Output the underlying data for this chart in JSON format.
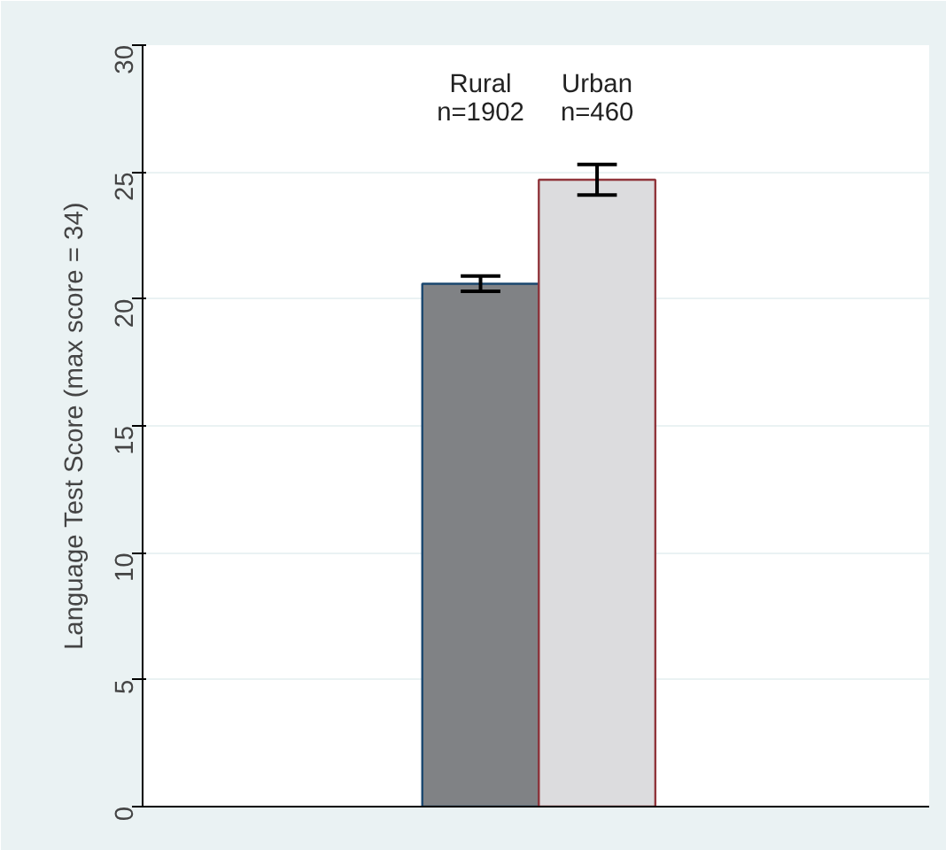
{
  "chart_data": {
    "type": "bar",
    "ylabel": "Language Test Score (max score = 34)",
    "categories": [
      "Rural\nn=1902",
      "Urban\nn=460"
    ],
    "values": [
      20.6,
      24.7
    ],
    "errors": [
      [
        20.3,
        20.9
      ],
      [
        24.1,
        25.3
      ]
    ],
    "colors": [
      "#808285",
      "#dcdcde"
    ],
    "ylim": [
      0,
      30
    ],
    "yticks": [
      0,
      5,
      10,
      15,
      20,
      25,
      30
    ],
    "grid": "y"
  }
}
